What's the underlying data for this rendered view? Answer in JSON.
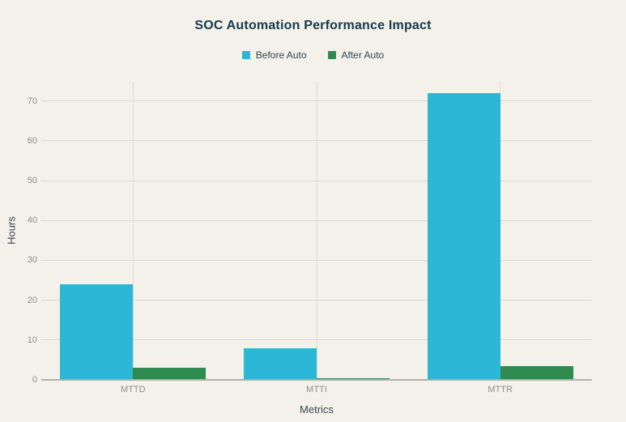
{
  "chart_data": {
    "type": "bar",
    "title": "SOC Automation Performance Impact",
    "categories": [
      "MTTD",
      "MTTI",
      "MTTR"
    ],
    "series": [
      {
        "name": "Before Auto",
        "color": "#2bb7d5",
        "values": [
          24,
          8,
          72
        ]
      },
      {
        "name": "After Auto",
        "color": "#2f8b50",
        "values": [
          3,
          0.5,
          3.5
        ]
      }
    ],
    "xlabel": "Metrics",
    "ylabel": "Hours",
    "ylim": [
      0,
      75
    ],
    "yticks": [
      0,
      10,
      20,
      30,
      40,
      50,
      60,
      70
    ],
    "grid": true,
    "legend_position": "top"
  },
  "colors": {
    "background": "#f3f1ea",
    "title_text": "#17394c",
    "legend_text": "#31454f",
    "tick_text": "#8d8c87",
    "axis_label_text": "#38474f",
    "gridline": "#dcdad2",
    "baseline": "#b3b0ab"
  }
}
